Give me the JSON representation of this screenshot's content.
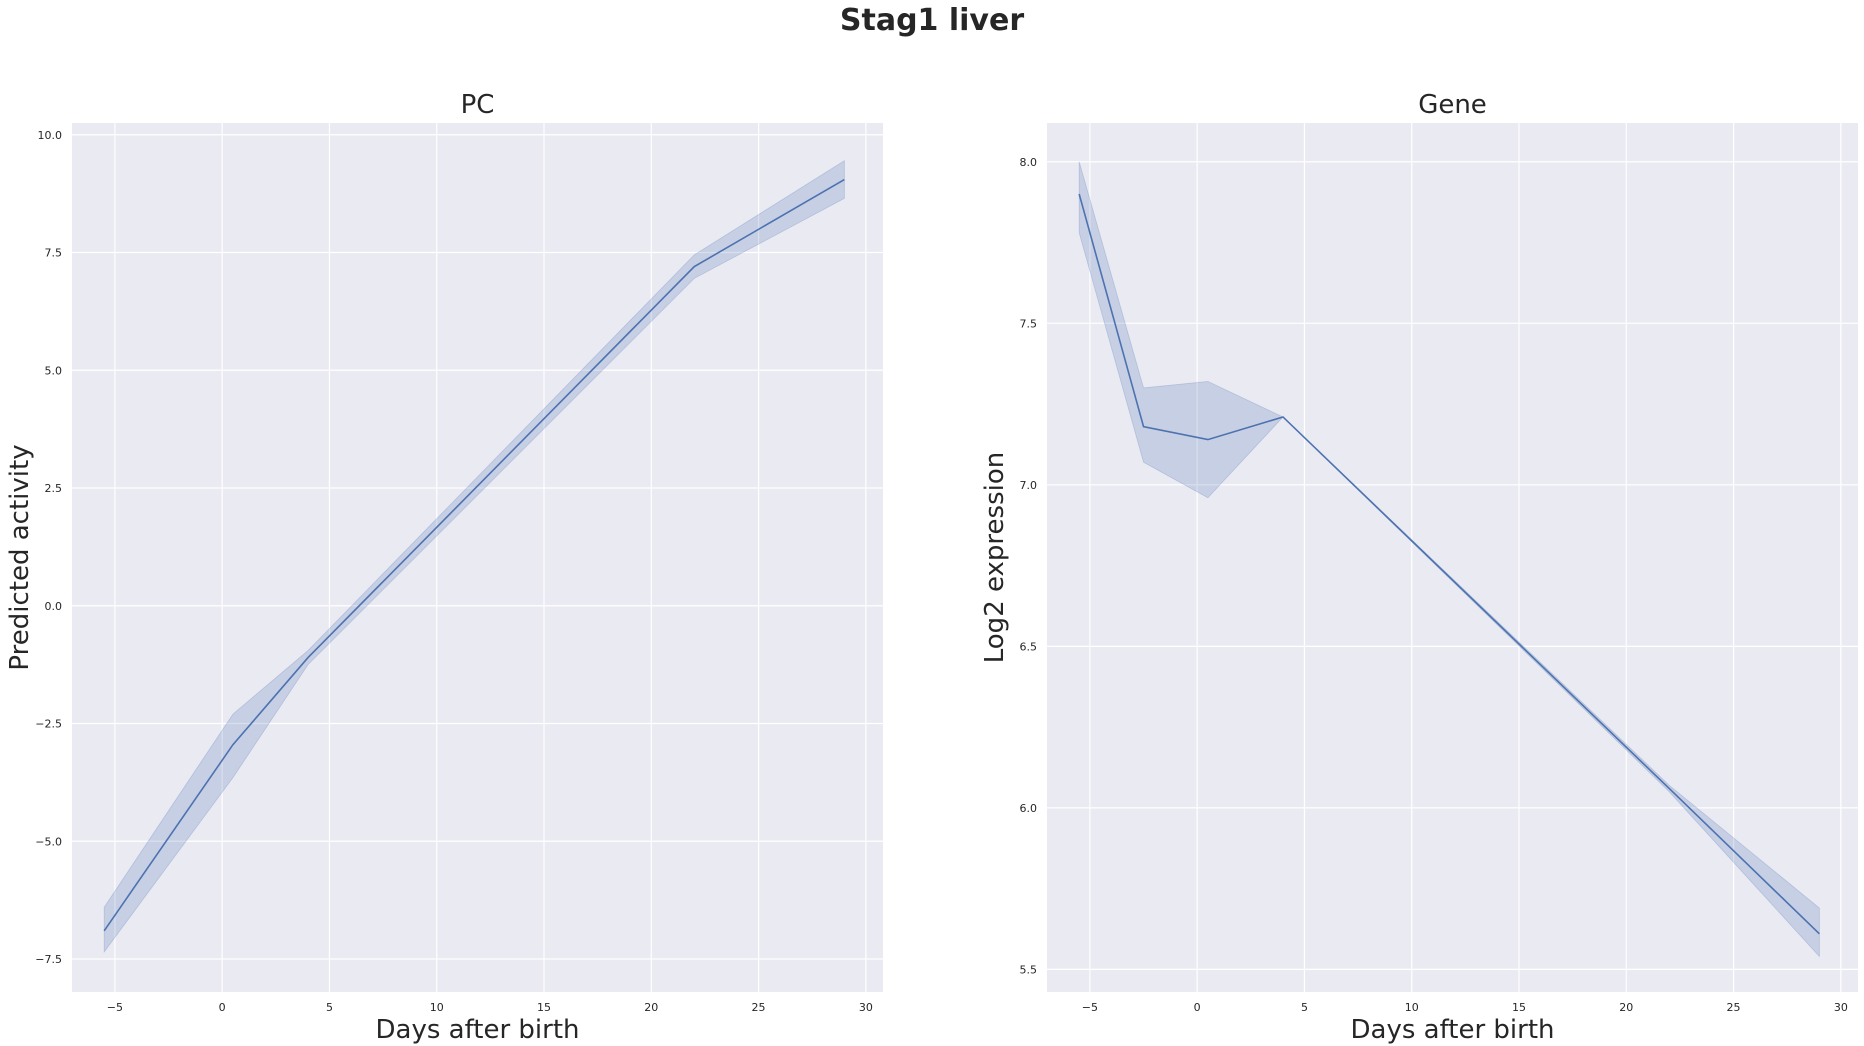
{
  "figure": {
    "title": "Stag1 liver"
  },
  "chart_data": [
    {
      "type": "line",
      "title": "PC",
      "xlabel": "Days after birth",
      "ylabel": "Predicted activity",
      "xlim": [
        -7.0,
        30.8
      ],
      "ylim": [
        -8.2,
        10.25
      ],
      "xticks": [
        -5,
        0,
        5,
        10,
        15,
        20,
        25,
        30
      ],
      "xtick_labels": [
        "−5",
        "0",
        "5",
        "10",
        "15",
        "20",
        "25",
        "30"
      ],
      "yticks": [
        -7.5,
        -5.0,
        -2.5,
        0.0,
        2.5,
        5.0,
        7.5,
        10.0
      ],
      "ytick_labels": [
        "−7.5",
        "−5.0",
        "−2.5",
        "0.0",
        "2.5",
        "5.0",
        "7.5",
        "10.0"
      ],
      "grid": true,
      "color": "#4c72b0",
      "series": [
        {
          "x": [
            -5.5,
            0.5,
            4,
            22,
            29
          ],
          "y": [
            -6.9,
            -2.95,
            -1.1,
            7.2,
            9.05
          ],
          "lower": [
            -7.35,
            -3.65,
            -1.25,
            6.95,
            8.65
          ],
          "upper": [
            -6.4,
            -2.3,
            -0.95,
            7.45,
            9.45
          ]
        }
      ]
    },
    {
      "type": "line",
      "title": "Gene",
      "xlabel": "Days after birth",
      "ylabel": "Log2 expression",
      "xlim": [
        -7.0,
        30.8
      ],
      "ylim": [
        5.43,
        8.12
      ],
      "xticks": [
        -5,
        0,
        5,
        10,
        15,
        20,
        25,
        30
      ],
      "xtick_labels": [
        "−5",
        "0",
        "5",
        "10",
        "15",
        "20",
        "25",
        "30"
      ],
      "yticks": [
        5.5,
        6.0,
        6.5,
        7.0,
        7.5,
        8.0
      ],
      "ytick_labels": [
        "5.5",
        "6.0",
        "6.5",
        "7.0",
        "7.5",
        "8.0"
      ],
      "grid": true,
      "color": "#4c72b0",
      "series": [
        {
          "x": [
            -5.5,
            -2.5,
            0.5,
            4,
            22,
            29
          ],
          "y": [
            7.9,
            7.18,
            7.14,
            7.21,
            6.06,
            5.61
          ],
          "lower": [
            7.78,
            7.07,
            6.96,
            7.21,
            6.05,
            5.54
          ],
          "upper": [
            8.0,
            7.3,
            7.32,
            7.21,
            6.07,
            5.69
          ]
        }
      ]
    }
  ]
}
